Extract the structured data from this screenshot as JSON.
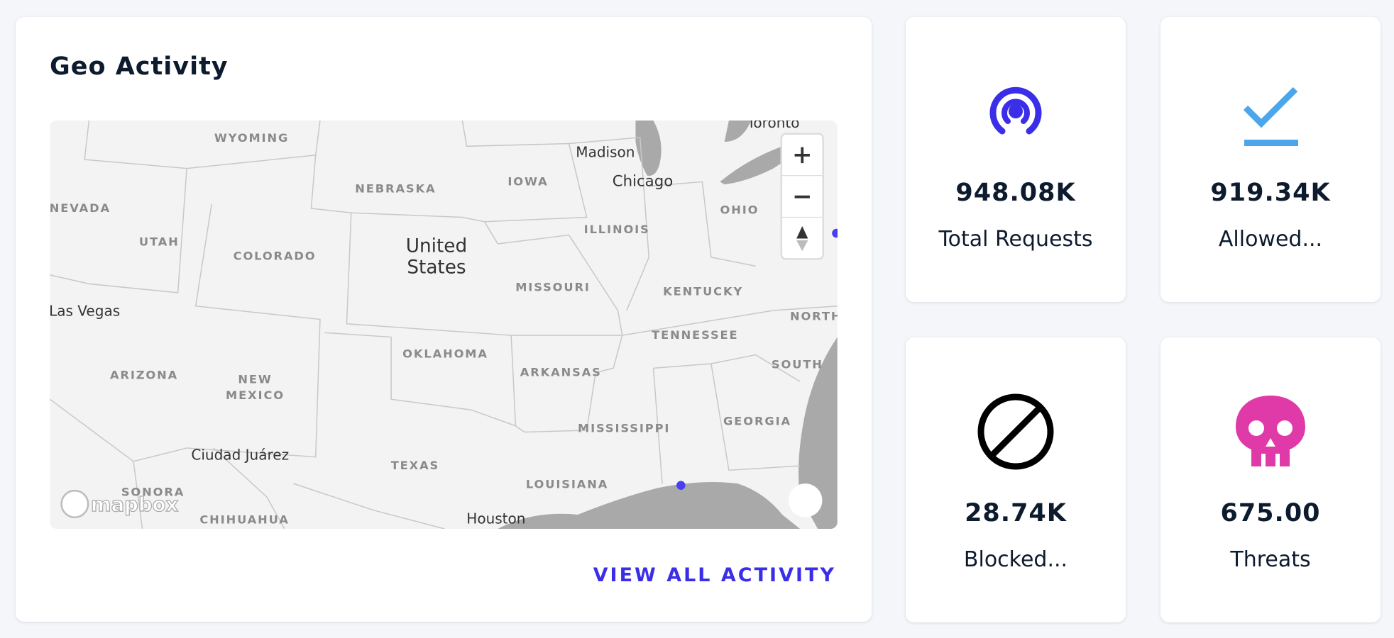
{
  "geo": {
    "title": "Geo Activity",
    "action": "VIEW ALL ACTIVITY",
    "map_labels": [
      "WYOMING",
      "NEBRASKA",
      "IOWA",
      "Madison",
      "Chicago",
      "Toronto",
      "OHIO",
      "NEVADA",
      "UTAH",
      "COLORADO",
      "United",
      "States",
      "ILLINOIS",
      "MISSOURI",
      "KENTUCKY",
      "Las Vegas",
      "TENNESSEE",
      "OKLAHOMA",
      "ARKANSAS",
      "ARIZONA",
      "NEW",
      "MEXICO",
      "NORTH",
      "SOUTH",
      "MISSISSIPPI",
      "GEORGIA",
      "TEXAS",
      "Ciudad Juárez",
      "LOUISIANA",
      "SONORA",
      "CHIHUAHUA",
      "Houston"
    ],
    "attribution": "mapbox"
  },
  "stats": [
    {
      "value": "948.08K",
      "label": "Total Requests"
    },
    {
      "value": "919.34K",
      "label": "Allowed..."
    },
    {
      "value": "28.74K",
      "label": "Blocked..."
    },
    {
      "value": "675.00",
      "label": "Threats"
    }
  ]
}
